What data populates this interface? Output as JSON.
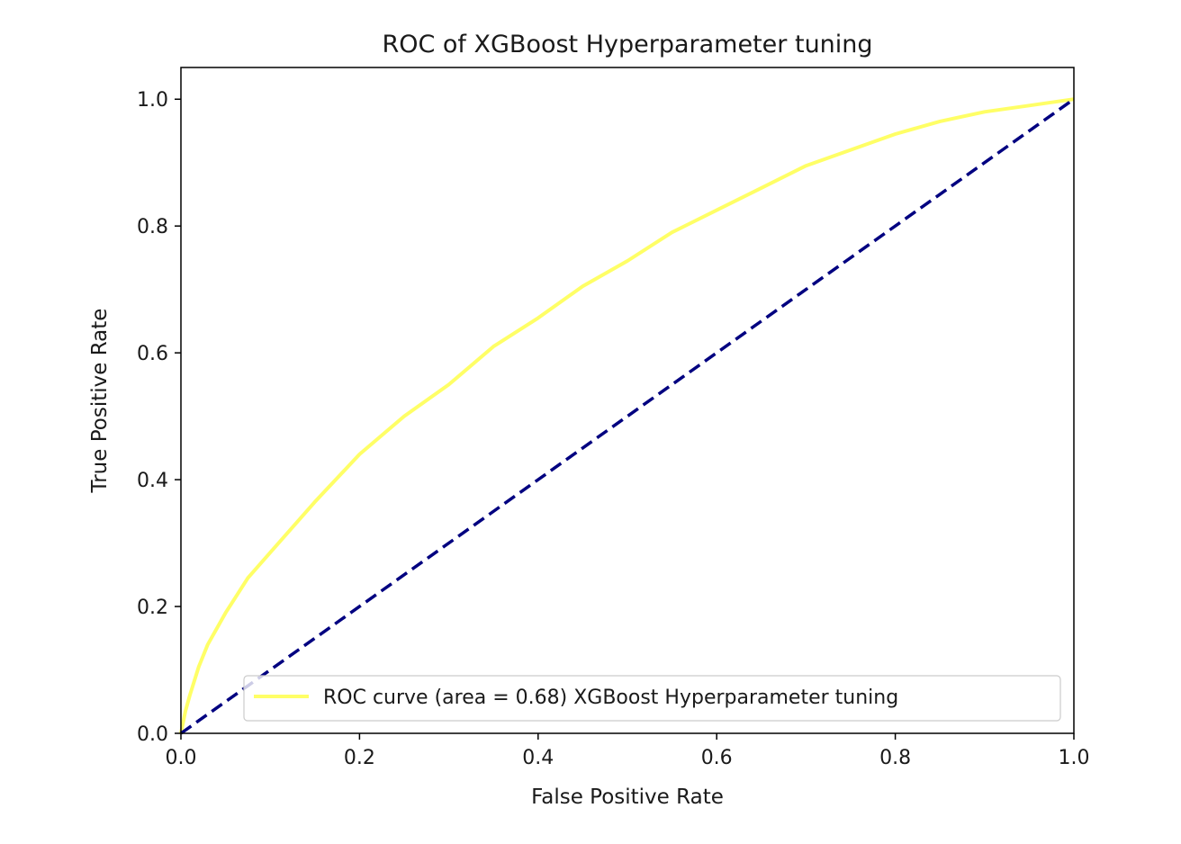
{
  "chart_data": {
    "type": "line",
    "title": "ROC of XGBoost Hyperparameter tuning",
    "xlabel": "False Positive Rate",
    "ylabel": "True Positive Rate",
    "xlim": [
      0.0,
      1.0
    ],
    "ylim": [
      0.0,
      1.05
    ],
    "x_ticks": [
      "0.0",
      "0.2",
      "0.4",
      "0.6",
      "0.8",
      "1.0"
    ],
    "y_ticks": [
      "0.0",
      "0.2",
      "0.4",
      "0.6",
      "0.8",
      "1.0"
    ],
    "grid": false,
    "legend_position": "lower right",
    "series": [
      {
        "name": "ROC curve (area = 0.68) XGBoost Hyperparameter tuning",
        "color": "#ffff66",
        "style": "solid",
        "x": [
          0.0,
          0.005,
          0.01,
          0.02,
          0.03,
          0.05,
          0.075,
          0.1,
          0.15,
          0.2,
          0.25,
          0.3,
          0.35,
          0.4,
          0.45,
          0.5,
          0.55,
          0.6,
          0.65,
          0.7,
          0.75,
          0.8,
          0.85,
          0.9,
          0.95,
          1.0
        ],
        "y": [
          0.0,
          0.035,
          0.06,
          0.105,
          0.14,
          0.19,
          0.245,
          0.285,
          0.365,
          0.44,
          0.5,
          0.55,
          0.61,
          0.655,
          0.705,
          0.745,
          0.79,
          0.825,
          0.86,
          0.895,
          0.92,
          0.945,
          0.965,
          0.98,
          0.99,
          1.0
        ]
      },
      {
        "name": "",
        "color": "#000080",
        "style": "dashed",
        "x": [
          0.0,
          1.0
        ],
        "y": [
          0.0,
          1.0
        ]
      }
    ]
  }
}
